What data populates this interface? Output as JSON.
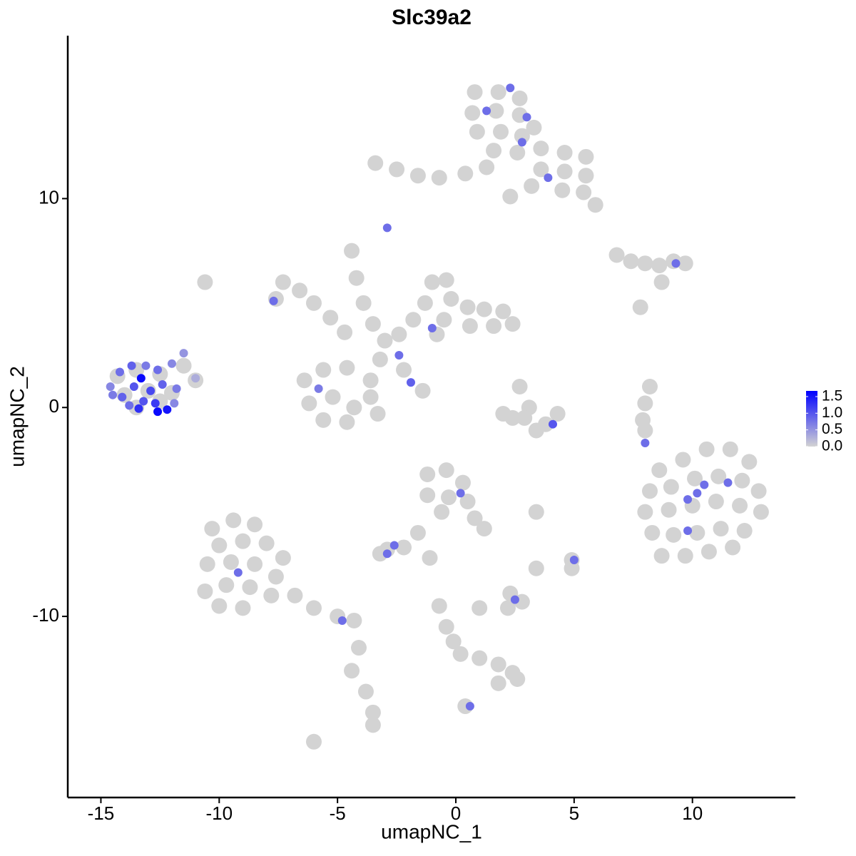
{
  "chart_data": {
    "type": "scatter",
    "title": "Slc39a2",
    "xlabel": "umapNC_1",
    "ylabel": "umapNC_2",
    "xlim": [
      -16.4,
      14.35
    ],
    "ylim": [
      -18.67,
      17.8
    ],
    "xticks": [
      -15,
      -10,
      -5,
      0,
      5,
      10
    ],
    "yticks": [
      -10,
      0,
      10
    ],
    "colors": [
      "#d3d3d3",
      "#0000ff"
    ],
    "clim": [
      0,
      1.67
    ],
    "cticks": [
      {
        "value": 0,
        "label": "0.0"
      },
      {
        "value": 0.5,
        "label": "0.5"
      },
      {
        "value": 1,
        "label": "1.0"
      },
      {
        "value": 1.5,
        "label": "1.5"
      }
    ],
    "x": [
      0.8,
      1.8,
      2.7,
      0.7,
      1.7,
      2.7,
      3.3,
      0.9,
      1.9,
      2.8,
      1.6,
      2.6,
      3.6,
      4.6,
      5.5,
      3.6,
      4.6,
      5.5,
      4.5,
      5.4,
      5.9,
      -3.4,
      -2.5,
      -1.6,
      -0.7,
      0.4,
      1.3,
      3.2,
      2.3,
      -7.3,
      -6.6,
      -7.6,
      -6.0,
      -5.3,
      -4.7,
      -4.4,
      -4.2,
      -3.9,
      -3.5,
      -3.0,
      -2.4,
      -1.8,
      -1.3,
      -1.0,
      -0.4,
      -0.2,
      0.5,
      1.2,
      2.0,
      2.4,
      1.6,
      0.6,
      -0.5,
      -0.8,
      -2.2,
      -1.4,
      -3.2,
      -3.6,
      -6.4,
      -5.6,
      -4.6,
      -3.6,
      -6.2,
      -5.2,
      -4.3,
      -5.6,
      -4.6,
      -3.3,
      -10.3,
      -9.4,
      -8.5,
      -10.0,
      -9.0,
      -8.0,
      -7.3,
      -10.5,
      -9.5,
      -8.5,
      -7.6,
      -10.6,
      -9.7,
      -8.7,
      -7.8,
      -6.8,
      -10.0,
      -9.0,
      -6.0,
      -5.0,
      -4.3,
      -4.1,
      -3.8,
      -3.5,
      -3.5,
      -6.0,
      -4.4,
      -1.2,
      -0.4,
      0.3,
      -1.2,
      -0.3,
      0.5,
      -0.6,
      0.8,
      1.2,
      -1.6,
      -2.2,
      -2.9,
      -3.2,
      -1.1,
      1.0,
      -0.7,
      -0.4,
      -0.1,
      0.2,
      1.0,
      1.8,
      2.4,
      2.6,
      1.8,
      0.4,
      2.3,
      2.8,
      2.2,
      3.4,
      4.9,
      4.9,
      3.4,
      2.7,
      3.1,
      2.9,
      3.8,
      3.4,
      4.3,
      2.4,
      2.0,
      6.8,
      7.4,
      8.0,
      8.6,
      9.2,
      9.7,
      8.7,
      7.8,
      8.2,
      8.0,
      7.9,
      8.0,
      8.6,
      9.6,
      10.6,
      11.6,
      12.4,
      8.2,
      9.1,
      10.1,
      11.1,
      12.1,
      12.8,
      8.0,
      9.0,
      10.0,
      11.0,
      12.0,
      12.9,
      8.3,
      9.2,
      10.2,
      11.2,
      12.2,
      8.7,
      9.7,
      10.7,
      11.7,
      -10.6,
      -14.3,
      -13.5,
      -12.5,
      -11.5,
      -14.0,
      -13.0,
      -12.0,
      -11.0,
      -13.5,
      -12.5,
      -14.6,
      -14.2,
      -13.7,
      -13.1,
      -12.6,
      -12.0,
      -11.5,
      -11.0,
      -14.1,
      -13.6,
      -13.3,
      -12.9,
      -12.4,
      -11.8,
      -13.8,
      -13.2,
      -12.7,
      -12.2,
      -12.6,
      -13.4,
      -11.9,
      -14.5,
      2.3,
      1.3,
      3.0,
      2.8,
      3.9,
      -2.9,
      9.3,
      -7.7,
      -1.0,
      -2.4,
      -1.9,
      -5.8,
      4.1,
      8.0,
      9.8,
      10.2,
      10.5,
      11.5,
      9.8,
      0.2,
      -2.6,
      -2.9,
      5.0,
      2.5,
      -9.2,
      -4.8,
      0.6
    ],
    "y": [
      15.1,
      15.1,
      14.8,
      14.1,
      14.2,
      14.0,
      13.4,
      13.2,
      13.2,
      13.0,
      12.3,
      12.2,
      12.4,
      12.2,
      12.0,
      11.4,
      11.3,
      11.1,
      10.4,
      10.3,
      9.7,
      11.7,
      11.4,
      11.1,
      11.0,
      11.2,
      11.5,
      10.6,
      10.1,
      6.0,
      5.6,
      5.2,
      5.0,
      4.3,
      3.6,
      7.5,
      6.2,
      5.0,
      4.0,
      3.2,
      3.5,
      4.2,
      5.0,
      6.0,
      6.1,
      5.2,
      4.8,
      4.7,
      4.6,
      4.0,
      3.9,
      3.9,
      4.2,
      3.5,
      1.8,
      0.8,
      2.3,
      1.3,
      1.3,
      1.8,
      1.9,
      0.5,
      0.2,
      0.5,
      0.0,
      -0.6,
      -0.7,
      -0.3,
      -5.8,
      -5.4,
      -5.6,
      -6.6,
      -6.4,
      -6.5,
      -7.2,
      -7.5,
      -7.4,
      -7.5,
      -8.1,
      -8.8,
      -8.5,
      -8.6,
      -9.0,
      -9.0,
      -9.5,
      -9.6,
      -9.6,
      -10.0,
      -10.2,
      -11.5,
      -13.6,
      -14.6,
      -15.2,
      -16.0,
      -12.6,
      -3.2,
      -3.0,
      -3.6,
      -4.2,
      -4.3,
      -4.5,
      -5.0,
      -5.3,
      -5.8,
      -6.0,
      -6.7,
      -6.8,
      -7.0,
      -7.2,
      -9.6,
      -9.5,
      -10.5,
      -11.2,
      -11.8,
      -12.0,
      -12.3,
      -12.7,
      -13.0,
      -13.2,
      -14.3,
      -8.9,
      -9.3,
      -9.6,
      -7.7,
      -7.3,
      -7.7,
      -5.0,
      1.0,
      0.0,
      -0.5,
      -0.8,
      -1.1,
      -0.3,
      -0.5,
      -0.3,
      7.3,
      7.0,
      6.9,
      6.8,
      7.0,
      6.9,
      6.0,
      4.8,
      1.0,
      0.2,
      -0.6,
      -1.1,
      -3.0,
      -2.5,
      -2.0,
      -2.0,
      -2.6,
      -4.0,
      -3.8,
      -3.4,
      -3.3,
      -3.5,
      -4.0,
      -5.0,
      -4.9,
      -4.7,
      -4.5,
      -4.7,
      -5.0,
      -6.0,
      -6.1,
      -6.0,
      -5.8,
      -5.9,
      -7.1,
      -7.1,
      -6.9,
      -6.7,
      6.0,
      1.5,
      1.8,
      1.6,
      2.0,
      0.6,
      0.8,
      0.7,
      1.3,
      0.0,
      0.3,
      1.0,
      1.7,
      2.0,
      2.0,
      1.8,
      2.1,
      2.6,
      1.4,
      0.5,
      1.0,
      1.4,
      0.8,
      1.1,
      0.9,
      0.1,
      0.3,
      0.2,
      -0.1,
      -0.2,
      -0.05,
      0.2,
      0.6,
      15.3,
      14.2,
      13.9,
      12.7,
      11.0,
      8.6,
      6.9,
      5.1,
      3.8,
      2.5,
      1.2,
      0.9,
      -0.8,
      -1.7,
      -4.4,
      -4.1,
      -3.7,
      -3.6,
      -5.9,
      -4.1,
      -6.6,
      -7.0,
      -7.3,
      -9.2,
      -7.9,
      -10.2,
      -14.3
    ],
    "values": [
      0,
      0,
      0,
      0,
      0,
      0,
      0,
      0,
      0,
      0,
      0,
      0,
      0,
      0,
      0,
      0,
      0,
      0,
      0,
      0,
      0,
      0,
      0,
      0,
      0,
      0,
      0,
      0,
      0,
      0,
      0,
      0,
      0,
      0,
      0,
      0,
      0,
      0,
      0,
      0,
      0,
      0,
      0,
      0,
      0,
      0,
      0,
      0,
      0,
      0,
      0,
      0,
      0,
      0,
      0,
      0,
      0,
      0,
      0,
      0,
      0,
      0,
      0,
      0,
      0,
      0,
      0,
      0,
      0,
      0,
      0,
      0,
      0,
      0,
      0,
      0,
      0,
      0,
      0,
      0,
      0,
      0,
      0,
      0,
      0,
      0,
      0,
      0,
      0,
      0,
      0,
      0,
      0,
      0,
      0,
      0,
      0,
      0,
      0,
      0,
      0,
      0,
      0,
      0,
      0,
      0,
      0,
      0,
      0,
      0,
      0,
      0,
      0,
      0,
      0,
      0,
      0,
      0,
      0,
      0,
      0,
      0,
      0,
      0,
      0,
      0,
      0,
      0,
      0,
      0,
      0,
      0,
      0,
      0,
      0,
      0,
      0,
      0,
      0,
      0,
      0,
      0,
      0,
      0,
      0,
      0,
      0,
      0,
      0,
      0,
      0,
      0,
      0,
      0,
      0,
      0,
      0,
      0,
      0,
      0,
      0,
      0,
      0,
      0,
      0,
      0,
      0,
      0,
      0,
      0,
      0,
      0,
      0,
      0,
      0,
      0,
      0,
      0,
      0,
      0,
      0,
      0,
      0,
      0,
      0.6,
      0.8,
      0.9,
      0.7,
      0.8,
      0.6,
      0.5,
      0.3,
      0.9,
      1.0,
      1.6,
      1.1,
      0.9,
      0.7,
      0.8,
      1.0,
      1.2,
      1.5,
      1.6,
      1.3,
      0.6,
      0.7,
      0.8,
      0.8,
      0.8,
      0.8,
      0.8,
      0.8,
      0.8,
      0.8,
      0.8,
      0.8,
      0.9,
      0.7,
      1.0,
      0.8,
      0.8,
      0.8,
      0.8,
      0.8,
      0.8,
      0.8,
      0.8,
      0.8,
      0.8,
      0.8,
      0.8,
      0.8,
      0.8
    ]
  }
}
